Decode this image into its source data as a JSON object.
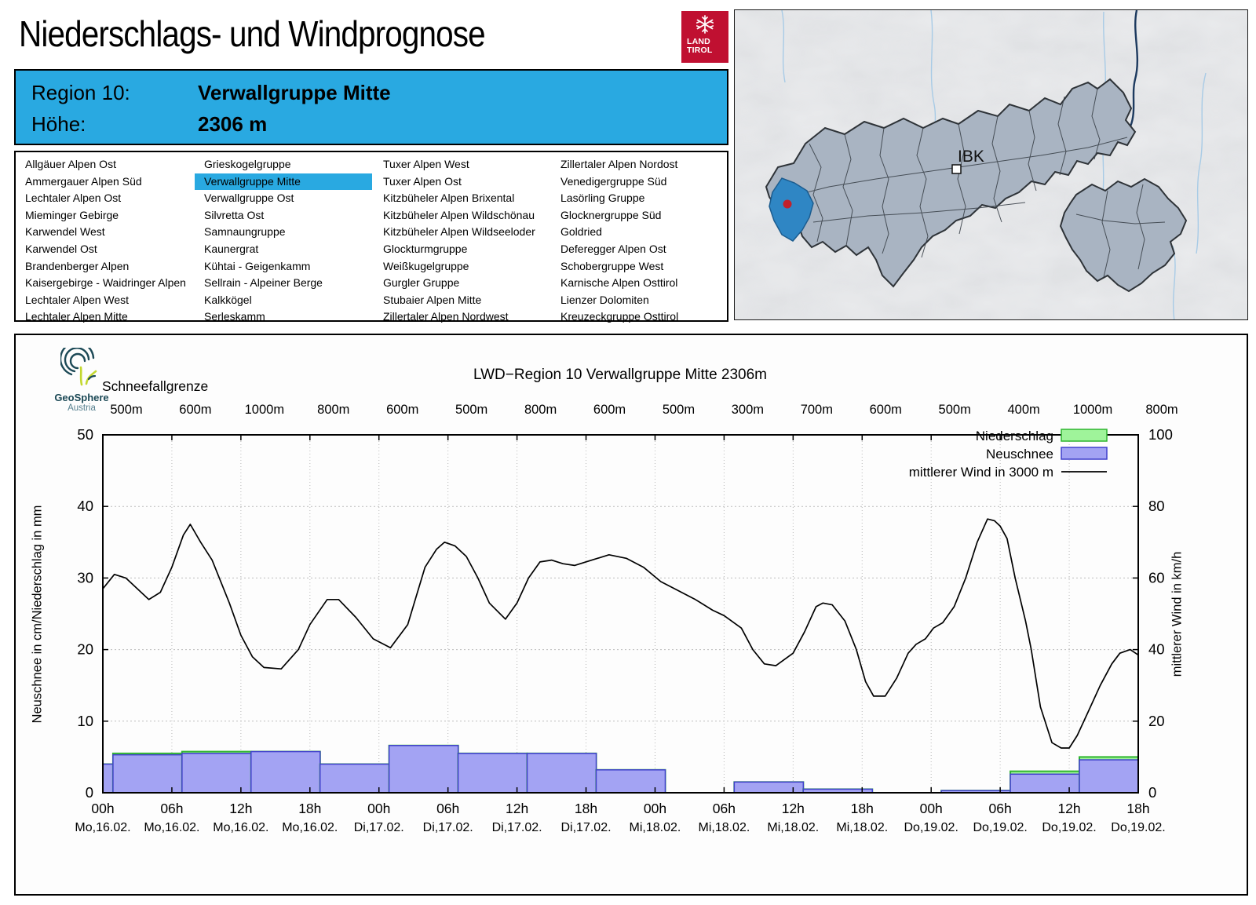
{
  "header": {
    "title": "Niederschlags- und Windprognose",
    "logo": {
      "line1": "LAND",
      "line2": "TIROL",
      "color": "#c01031"
    }
  },
  "info_box": {
    "region_label": "Region 10:",
    "region_value": "Verwallgruppe Mitte",
    "altitude_label": "Höhe:",
    "altitude_value": "2306 m",
    "bg_color": "#29a9e1"
  },
  "region_list": {
    "selected": "Verwallgruppe Mitte",
    "highlight_color": "#29a9e1",
    "columns": [
      {
        "items": [
          "Allgäuer Alpen Ost",
          "Ammergauer Alpen Süd",
          "Lechtaler Alpen Ost",
          "Mieminger Gebirge",
          "Karwendel West",
          "Karwendel Ost",
          "Brandenberger Alpen",
          "Kaisergebirge - Waidringer Alpen",
          "Lechtaler Alpen West",
          "Lechtaler Alpen Mitte"
        ]
      },
      {
        "items": [
          "Grieskogelgruppe",
          "Verwallgruppe Mitte",
          "Verwallgruppe Ost",
          "Silvretta Ost",
          "Samnaungruppe",
          "Kaunergrat",
          "Kühtai - Geigenkamm",
          "Sellrain - Alpeiner Berge",
          "Kalkkögel",
          "Serleskamm"
        ]
      },
      {
        "items": [
          "Tuxer Alpen West",
          "Tuxer Alpen Ost",
          "Kitzbüheler Alpen Brixental",
          "Kitzbüheler Alpen Wildschönau",
          "Kitzbüheler Alpen Wildseeloder",
          "Glockturmgruppe",
          "Weißkugelgruppe",
          "Gurgler Gruppe",
          "Stubaier Alpen Mitte",
          "Zillertaler Alpen Nordwest"
        ]
      },
      {
        "items": [
          "Zillertaler Alpen Nordost",
          "Venedigergruppe Süd",
          "Lasörling Gruppe",
          "Glocknergruppe Süd",
          "Goldried",
          "Deferegger Alpen Ost",
          "Schobergruppe West",
          "Karnische Alpen Osttirol",
          "Lienzer Dolomiten",
          "Kreuzeckgruppe Osttirol"
        ]
      }
    ]
  },
  "map": {
    "city_label": "IBK",
    "region_fill": "#a9b4c2",
    "highlight_color": "#2f86c4",
    "marker_color": "#c3202a"
  },
  "geosphere": {
    "name": "GeoSphere",
    "country": "Austria"
  },
  "chart_data": {
    "type": "bar",
    "subtype": "bars+line",
    "title": "LWD−Region 10 Verwallgruppe Mitte 2306m",
    "snowline_header": "Schneefallgrenze",
    "snowline_labels": [
      "500m",
      "600m",
      "1000m",
      "800m",
      "600m",
      "500m",
      "800m",
      "600m",
      "500m",
      "300m",
      "700m",
      "600m",
      "500m",
      "400m",
      "1000m",
      "800m"
    ],
    "x_time_labels": [
      "00h",
      "06h",
      "12h",
      "18h",
      "00h",
      "06h",
      "12h",
      "18h",
      "00h",
      "06h",
      "12h",
      "18h",
      "00h",
      "06h",
      "12h",
      "18h"
    ],
    "x_date_labels": [
      "Mo,16.02.",
      "Mo,16.02.",
      "Mo,16.02.",
      "Mo,16.02.",
      "Di,17.02.",
      "Di,17.02.",
      "Di,17.02.",
      "Di,17.02.",
      "Mi,18.02.",
      "Mi,18.02.",
      "Mi,18.02.",
      "Mi,18.02.",
      "Do,19.02.",
      "Do,19.02.",
      "Do,19.02.",
      "Do,19.02."
    ],
    "ylabel_left": "Neuschnee in cm/Niederschlag in mm",
    "ylabel_right": "mittlerer Wind in km/h",
    "ylim_left": [
      0,
      50
    ],
    "ylim_right": [
      0,
      100
    ],
    "yticks_left": [
      0,
      10,
      20,
      30,
      40,
      50
    ],
    "yticks_right": [
      0,
      20,
      40,
      60,
      80,
      100
    ],
    "legend": [
      {
        "label": "Niederschlag",
        "fill": "#9ff49a",
        "stroke": "#2fb52f"
      },
      {
        "label": "Neuschnee",
        "fill": "#a3a3f3",
        "stroke": "#4040cc"
      },
      {
        "label": "mittlerer Wind in 3000 m",
        "stroke": "#000000"
      }
    ],
    "neuschnee_cm": [
      4.0,
      5.3,
      5.5,
      5.75,
      4.0,
      6.6,
      5.5,
      5.5,
      3.2,
      0,
      1.5,
      0.5,
      0,
      0.3,
      2.6,
      4.6
    ],
    "niederschlag_mm": [
      4.0,
      5.5,
      5.75,
      5.75,
      4.0,
      6.6,
      5.5,
      5.5,
      3.2,
      0,
      1.5,
      0.5,
      0,
      0.3,
      3.0,
      5.0
    ],
    "wind_kmh": [
      [
        0,
        57
      ],
      [
        1,
        61
      ],
      [
        2,
        60
      ],
      [
        4,
        54
      ],
      [
        5,
        56
      ],
      [
        6,
        63
      ],
      [
        7,
        72
      ],
      [
        7.6,
        75
      ],
      [
        8.5,
        70
      ],
      [
        9.5,
        65
      ],
      [
        11,
        53
      ],
      [
        12,
        44
      ],
      [
        13,
        38
      ],
      [
        14,
        35
      ],
      [
        15.5,
        34.6
      ],
      [
        17,
        40
      ],
      [
        18,
        47
      ],
      [
        19.5,
        54
      ],
      [
        20.5,
        54
      ],
      [
        22,
        49
      ],
      [
        23.5,
        43
      ],
      [
        25,
        40.5
      ],
      [
        26.5,
        47
      ],
      [
        28,
        63
      ],
      [
        29,
        68
      ],
      [
        29.7,
        70
      ],
      [
        30.6,
        69
      ],
      [
        31.6,
        66
      ],
      [
        32.6,
        60
      ],
      [
        33.6,
        53
      ],
      [
        35,
        48.5
      ],
      [
        36,
        53
      ],
      [
        37,
        60
      ],
      [
        38,
        64.5
      ],
      [
        39,
        65
      ],
      [
        40,
        64
      ],
      [
        41,
        63.5
      ],
      [
        42.5,
        65
      ],
      [
        44,
        66.5
      ],
      [
        45.5,
        65.5
      ],
      [
        47,
        63
      ],
      [
        48.5,
        59
      ],
      [
        50,
        56.5
      ],
      [
        51.5,
        54
      ],
      [
        53,
        51
      ],
      [
        54,
        49.5
      ],
      [
        55.5,
        46
      ],
      [
        56.5,
        40
      ],
      [
        57.5,
        36
      ],
      [
        58.5,
        35.5
      ],
      [
        60,
        39
      ],
      [
        61,
        45
      ],
      [
        62,
        52
      ],
      [
        62.6,
        53
      ],
      [
        63.4,
        52.5
      ],
      [
        64.5,
        48
      ],
      [
        65.5,
        40
      ],
      [
        66.3,
        31
      ],
      [
        67,
        27
      ],
      [
        68,
        27
      ],
      [
        69,
        32
      ],
      [
        70,
        39
      ],
      [
        70.7,
        41.5
      ],
      [
        71.5,
        43
      ],
      [
        72.2,
        46
      ],
      [
        73,
        47.5
      ],
      [
        74,
        52
      ],
      [
        75,
        60
      ],
      [
        76,
        70
      ],
      [
        76.9,
        76.5
      ],
      [
        77.5,
        76
      ],
      [
        78,
        74.5
      ],
      [
        78.6,
        71
      ],
      [
        79.3,
        60
      ],
      [
        80.2,
        48
      ],
      [
        80.7,
        40
      ],
      [
        81.5,
        24
      ],
      [
        82.5,
        14
      ],
      [
        83.3,
        12.5
      ],
      [
        84,
        12.5
      ],
      [
        84.7,
        16
      ],
      [
        85.7,
        23
      ],
      [
        86.7,
        30
      ],
      [
        87.7,
        36
      ],
      [
        88.4,
        39
      ],
      [
        89.3,
        40
      ],
      [
        90,
        38.5
      ]
    ]
  }
}
